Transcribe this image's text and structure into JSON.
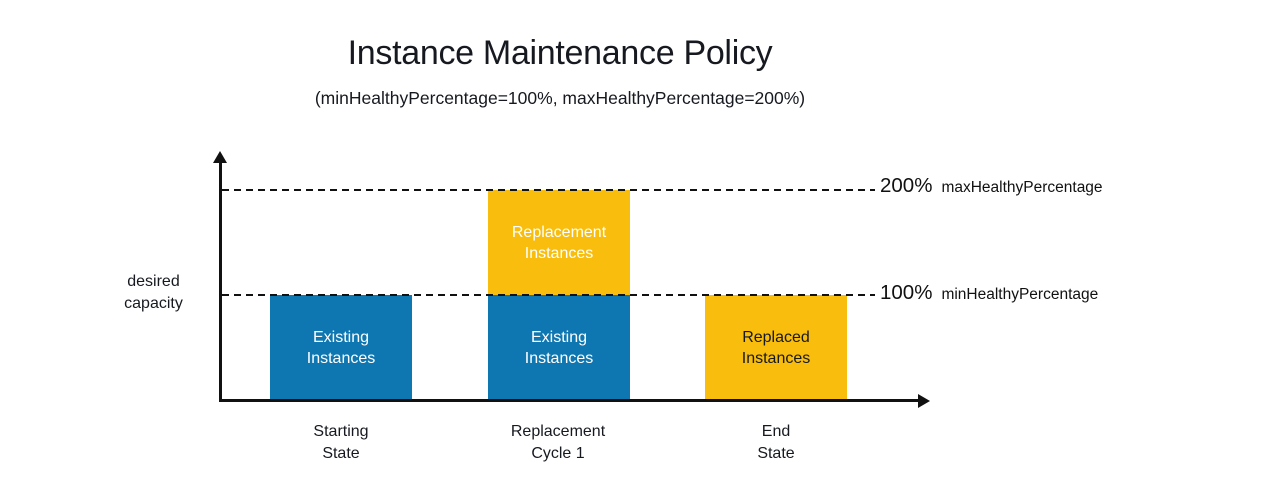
{
  "title": "Instance Maintenance Policy",
  "subtitle": "(minHealthyPercentage=100%, maxHealthyPercentage=200%)",
  "y_axis_label": "desired\ncapacity",
  "reference_lines": {
    "max": {
      "value": "200%",
      "name": "maxHealthyPercentage"
    },
    "min": {
      "value": "100%",
      "name": "minHealthyPercentage"
    }
  },
  "bars": {
    "starting_existing": {
      "label": "Existing\nInstances",
      "color": "#0e76b0",
      "text_color": "#ffffff"
    },
    "cycle1_existing": {
      "label": "Existing\nInstances",
      "color": "#0e76b0",
      "text_color": "#ffffff"
    },
    "cycle1_replacement": {
      "label": "Replacement\nInstances",
      "color": "#f8bd0d",
      "text_color": "#ffffff"
    },
    "end_replaced": {
      "label": "Replaced\nInstances",
      "color": "#f8bd0d",
      "text_color": "#16191f"
    }
  },
  "x_labels": {
    "starting": "Starting\nState",
    "cycle1": "Replacement\nCycle 1",
    "end": "End\nState"
  },
  "colors": {
    "bar_blue": "#0e76b0",
    "bar_yellow": "#f8bd0d",
    "axis": "#111111",
    "text": "#16191f",
    "background": "#ffffff"
  },
  "chart_data": {
    "type": "bar",
    "stacked": true,
    "title": "Instance Maintenance Policy",
    "subtitle": "(minHealthyPercentage=100%, maxHealthyPercentage=200%)",
    "categories": [
      "Starting State",
      "Replacement Cycle 1",
      "End State"
    ],
    "series": [
      {
        "name": "Existing Instances",
        "color": "#0e76b0",
        "values": [
          100,
          100,
          0
        ]
      },
      {
        "name": "Replacement Instances",
        "color": "#f8bd0d",
        "values": [
          0,
          100,
          0
        ]
      },
      {
        "name": "Replaced Instances",
        "color": "#f8bd0d",
        "values": [
          0,
          0,
          100
        ]
      }
    ],
    "xlabel": "",
    "ylabel": "desired capacity",
    "yunit": "% of desired capacity",
    "ylim": [
      0,
      230
    ],
    "grid": false,
    "legend": "none",
    "reference_lines": [
      {
        "y": 200,
        "label": "200% maxHealthyPercentage",
        "style": "dashed"
      },
      {
        "y": 100,
        "label": "100% minHealthyPercentage",
        "style": "dashed"
      }
    ]
  }
}
